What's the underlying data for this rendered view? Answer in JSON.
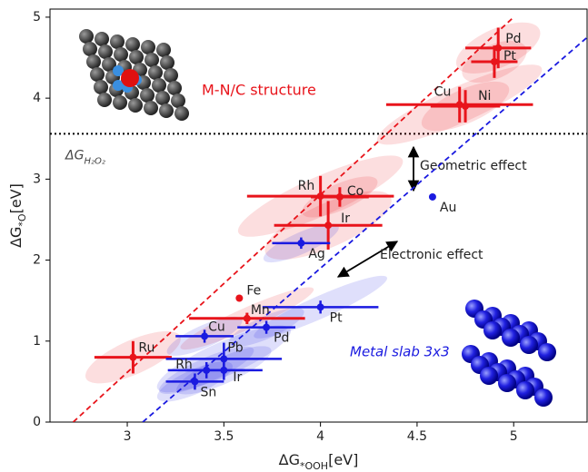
{
  "chart_data": {
    "type": "scatter",
    "xlabel": {
      "main": "ΔG",
      "sub": "*OOH",
      "unit": "[eV]"
    },
    "ylabel": {
      "main": "ΔG",
      "sub": "*O",
      "unit": "[eV]"
    },
    "xlim": [
      2.6,
      5.38
    ],
    "ylim": [
      0,
      5.1
    ],
    "xticks": [
      3.0,
      3.5,
      4.0,
      4.5,
      5.0
    ],
    "yticks": [
      0,
      1,
      2,
      3,
      4,
      5
    ],
    "series": [
      {
        "name": "M-N/C structure",
        "color": "#e8141b",
        "labels": [
          "Ru",
          "Fe",
          "Mn",
          "Rh",
          "Co",
          "Ir",
          "Cu",
          "Ni",
          "Pt",
          "Pd"
        ],
        "x": [
          3.03,
          3.58,
          3.62,
          4.0,
          4.1,
          4.04,
          4.72,
          4.75,
          4.9,
          4.92
        ],
        "y": [
          0.8,
          1.53,
          1.28,
          2.79,
          2.78,
          2.43,
          3.92,
          3.9,
          4.45,
          4.62
        ],
        "xerr": [
          0.2,
          null,
          0.3,
          0.38,
          0.15,
          0.28,
          0.38,
          0.18,
          0.12,
          0.17
        ],
        "yerr": [
          0.2,
          null,
          0.07,
          0.25,
          0.12,
          0.3,
          0.22,
          0.2,
          0.2,
          0.25
        ]
      },
      {
        "name": "Metal slab 3x3",
        "color": "#1a1ae0",
        "labels": [
          "Au",
          "Ag",
          "Pt",
          "Pd",
          "Cu",
          "Pb",
          "Rh",
          "Ir",
          "Sn"
        ],
        "x": [
          4.58,
          3.9,
          4.0,
          3.72,
          3.4,
          3.5,
          3.41,
          3.5,
          3.35
        ],
        "y": [
          2.78,
          2.21,
          1.42,
          1.17,
          1.06,
          0.78,
          0.64,
          0.64,
          0.5
        ],
        "xerr": [
          null,
          0.15,
          0.3,
          0.15,
          0.15,
          0.3,
          0.2,
          0.2,
          0.15
        ],
        "yerr": [
          null,
          0.07,
          0.08,
          0.08,
          0.08,
          0.2,
          0.1,
          0.12,
          0.1
        ]
      }
    ],
    "lines": [
      {
        "color": "#e8141b",
        "x": [
          2.72,
          5.0
        ],
        "y": [
          0,
          5.0
        ]
      },
      {
        "color": "#1a1ae0",
        "x": [
          3.08,
          5.38
        ],
        "y": [
          0,
          4.75
        ]
      }
    ],
    "hline": {
      "value": 3.56,
      "main": "ΔG",
      "sub": "H₂O₂"
    },
    "annotations": [
      "Geometric effect",
      "Electronic effect"
    ]
  }
}
